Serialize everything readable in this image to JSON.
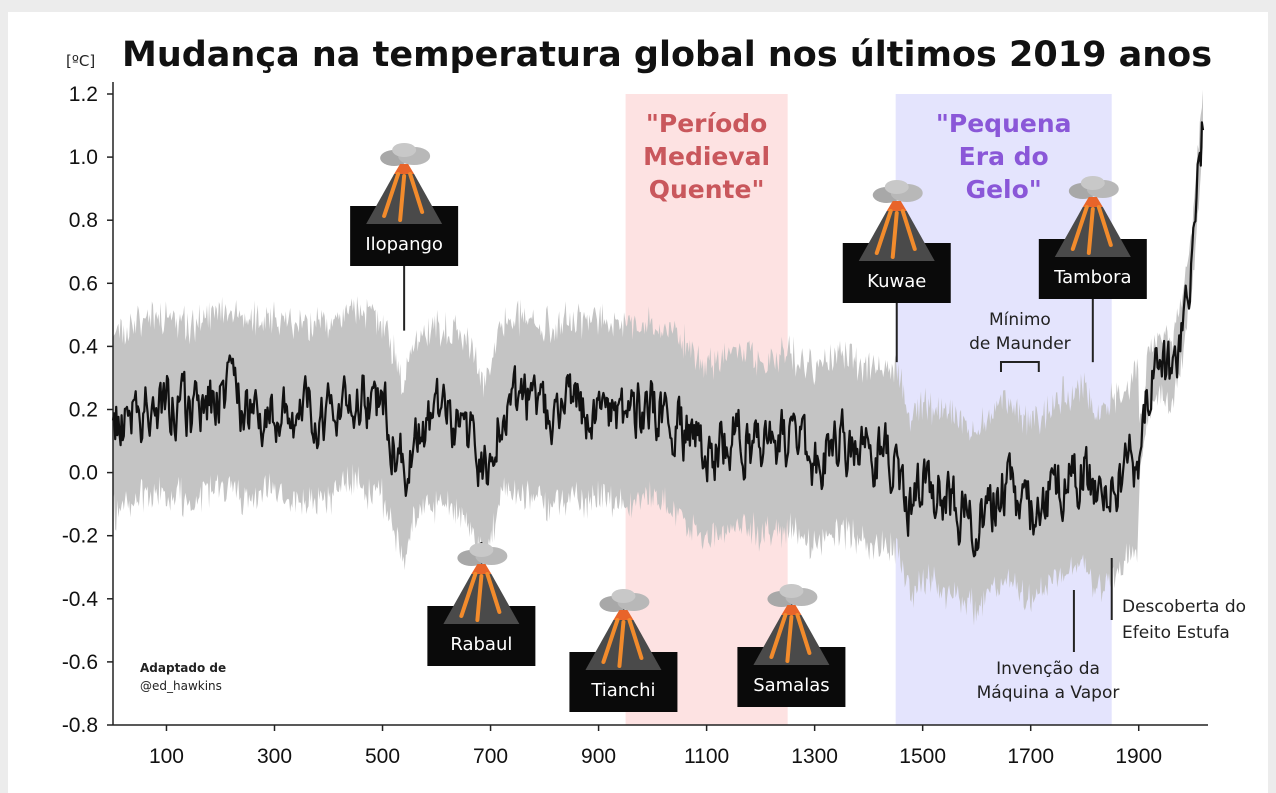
{
  "chart_data": {
    "type": "line",
    "title": "Mudança na temperatura global nos últimos 2019 anos",
    "ylabel": "[ºC]",
    "xlim": [
      1,
      2019
    ],
    "ylim": [
      -0.8,
      1.2
    ],
    "xticks": [
      "100",
      "300",
      "500",
      "700",
      "900",
      "1100",
      "1300",
      "1500",
      "1700",
      "1900"
    ],
    "yticks": [
      "1.2",
      "1.0",
      "0.8",
      "0.6",
      "0.4",
      "0.2",
      "0.0",
      "-0.2",
      "-0.4",
      "-0.6",
      "-0.8"
    ],
    "series": [
      {
        "x": [
          1,
          50,
          100,
          150,
          200,
          250,
          300,
          350,
          400,
          450,
          500,
          540,
          560,
          600,
          650,
          690,
          720,
          760,
          800,
          850,
          900,
          950,
          1000,
          1050,
          1100,
          1150,
          1200,
          1250,
          1300,
          1350,
          1400,
          1450,
          1480,
          1500,
          1550,
          1600,
          1650,
          1700,
          1750,
          1800,
          1820,
          1850,
          1880,
          1900,
          1920,
          1940,
          1960,
          1980,
          2000,
          2010,
          2019
        ],
        "values": [
          0.15,
          0.2,
          0.22,
          0.18,
          0.25,
          0.2,
          0.22,
          0.18,
          0.2,
          0.25,
          0.2,
          0.0,
          0.15,
          0.18,
          0.15,
          0.0,
          0.2,
          0.22,
          0.18,
          0.2,
          0.2,
          0.18,
          0.2,
          0.15,
          0.05,
          0.12,
          0.08,
          0.1,
          0.05,
          0.1,
          0.05,
          0.05,
          -0.12,
          -0.05,
          -0.1,
          -0.15,
          -0.05,
          -0.12,
          -0.05,
          0.0,
          -0.1,
          -0.05,
          0.0,
          0.05,
          0.3,
          0.35,
          0.3,
          0.45,
          0.7,
          0.95,
          1.1
        ],
        "uncertainty_half_width": 0.25
      }
    ],
    "periods": [
      {
        "label_lines": [
          "\"Período",
          "Medieval",
          "Quente\""
        ],
        "from": 950,
        "to": 1250,
        "color": "#fde2e2"
      },
      {
        "label_lines": [
          "\"Pequena",
          "Era do",
          "Gelo\""
        ],
        "from": 1450,
        "to": 1850,
        "color": "#e4e4fd"
      }
    ],
    "volcanoes": [
      {
        "name": "Ilopango",
        "year": 540,
        "anchor": 0.45,
        "position": "above"
      },
      {
        "name": "Rabaul",
        "year": 683,
        "anchor": -0.22,
        "position": "below"
      },
      {
        "name": "Tianchi",
        "year": 946,
        "anchor": -0.37,
        "position": "below"
      },
      {
        "name": "Samalas",
        "year": 1257,
        "anchor": -0.37,
        "position": "below"
      },
      {
        "name": "Kuwae",
        "year": 1452,
        "anchor": 0.35,
        "position": "above"
      },
      {
        "name": "Tambora",
        "year": 1815,
        "anchor": 0.35,
        "position": "above"
      }
    ],
    "annotations": [
      {
        "lines": [
          "Mínimo",
          "de Maunder"
        ],
        "from": 1645,
        "to": 1715
      },
      {
        "lines": [
          "Invenção da",
          "Máquina a Vapor"
        ],
        "year": 1780
      },
      {
        "lines": [
          "Descoberta do",
          "Efeito Estufa"
        ],
        "year": 1850
      }
    ],
    "credit": {
      "label": "Adaptado de",
      "handle": "@ed_hawkins"
    }
  },
  "colors": {
    "line": "#111111",
    "band": "#c4c4c4",
    "medieval": "#c9575c",
    "little_ice_age": "#8a57d8",
    "volcano_label_bg": "#0a0a0a",
    "volcano_label_fg": "#ffffff"
  },
  "icons": {
    "volcano": "volcano-icon"
  }
}
